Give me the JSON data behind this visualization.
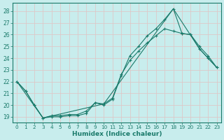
{
  "xlabel": "Humidex (Indice chaleur)",
  "xlim": [
    -0.5,
    23.5
  ],
  "ylim": [
    18.5,
    28.7
  ],
  "yticks": [
    19,
    20,
    21,
    22,
    23,
    24,
    25,
    26,
    27,
    28
  ],
  "xticks": [
    0,
    1,
    2,
    3,
    4,
    5,
    6,
    7,
    8,
    9,
    10,
    11,
    12,
    13,
    14,
    15,
    16,
    17,
    18,
    19,
    20,
    21,
    22,
    23
  ],
  "background_color": "#c8eded",
  "grid_color": "#ddc8c8",
  "line_color": "#1a7a6a",
  "line1_jagged": [
    [
      0,
      22.0
    ],
    [
      1,
      21.2
    ],
    [
      2,
      20.0
    ],
    [
      3,
      18.9
    ],
    [
      4,
      19.0
    ],
    [
      5,
      19.0
    ],
    [
      6,
      19.1
    ],
    [
      7,
      19.1
    ],
    [
      8,
      19.3
    ],
    [
      9,
      20.2
    ],
    [
      10,
      20.0
    ],
    [
      11,
      20.5
    ],
    [
      12,
      22.5
    ],
    [
      13,
      24.2
    ],
    [
      14,
      25.0
    ],
    [
      15,
      25.9
    ],
    [
      16,
      26.5
    ],
    [
      17,
      27.3
    ],
    [
      18,
      28.2
    ],
    [
      19,
      26.1
    ],
    [
      20,
      26.0
    ],
    [
      21,
      24.8
    ],
    [
      22,
      24.0
    ],
    [
      23,
      23.2
    ]
  ],
  "line2_smooth": [
    [
      0,
      22.0
    ],
    [
      1,
      21.2
    ],
    [
      2,
      20.0
    ],
    [
      3,
      18.9
    ],
    [
      4,
      19.1
    ],
    [
      5,
      19.1
    ],
    [
      6,
      19.2
    ],
    [
      7,
      19.2
    ],
    [
      8,
      19.5
    ],
    [
      9,
      20.2
    ],
    [
      10,
      20.1
    ],
    [
      11,
      20.6
    ],
    [
      12,
      22.6
    ],
    [
      13,
      23.8
    ],
    [
      14,
      24.6
    ],
    [
      15,
      25.3
    ],
    [
      16,
      25.9
    ],
    [
      17,
      26.5
    ],
    [
      18,
      26.3
    ],
    [
      19,
      26.1
    ],
    [
      20,
      26.0
    ],
    [
      21,
      25.0
    ],
    [
      22,
      24.2
    ],
    [
      23,
      23.2
    ]
  ],
  "line3_diagonal": [
    [
      0,
      22.0
    ],
    [
      3,
      18.9
    ],
    [
      10,
      20.1
    ],
    [
      18,
      28.2
    ],
    [
      21,
      24.8
    ],
    [
      23,
      23.2
    ]
  ]
}
